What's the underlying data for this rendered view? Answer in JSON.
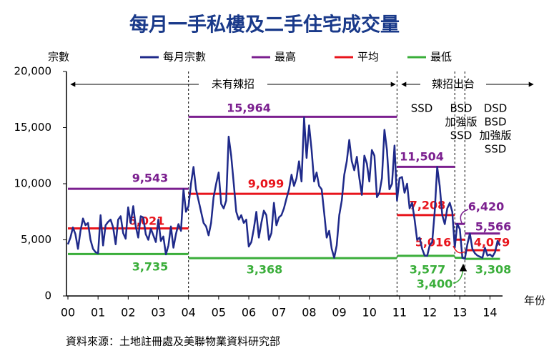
{
  "chart_data": {
    "type": "line",
    "title": "每月一手私樓及二手住宅成交量",
    "ylabel": "宗數",
    "xlabel": "年份",
    "source": "資料來源：土地註冊處及美聯物業資料研究部",
    "xlim": [
      0,
      173
    ],
    "xticks": [
      {
        "value": 0,
        "label": "00"
      },
      {
        "value": 12,
        "label": "01"
      },
      {
        "value": 24,
        "label": "02"
      },
      {
        "value": 36,
        "label": "03"
      },
      {
        "value": 48,
        "label": "04"
      },
      {
        "value": 60,
        "label": "05"
      },
      {
        "value": 72,
        "label": "06"
      },
      {
        "value": 84,
        "label": "07"
      },
      {
        "value": 96,
        "label": "08"
      },
      {
        "value": 108,
        "label": "09"
      },
      {
        "value": 120,
        "label": "10"
      },
      {
        "value": 132,
        "label": "11"
      },
      {
        "value": 144,
        "label": "12"
      },
      {
        "value": 156,
        "label": "13"
      },
      {
        "value": 168,
        "label": "14"
      }
    ],
    "ylim": [
      0,
      20000
    ],
    "yticks": [
      0,
      {
        "value": 5000,
        "label": "5,000"
      },
      {
        "value": 10000,
        "label": "10,000"
      },
      {
        "value": 15000,
        "label": "15,000"
      },
      {
        "value": 20000,
        "label": "20,000"
      }
    ],
    "series": [
      {
        "name": "每月宗數",
        "color": "#1f2a8a",
        "x": [
          0,
          1,
          2,
          3,
          4,
          5,
          6,
          7,
          8,
          9,
          10,
          11,
          12,
          13,
          14,
          15,
          16,
          17,
          18,
          19,
          20,
          21,
          22,
          23,
          24,
          25,
          26,
          27,
          28,
          29,
          30,
          31,
          32,
          33,
          34,
          35,
          36,
          37,
          38,
          39,
          40,
          41,
          42,
          43,
          44,
          45,
          46,
          47,
          48,
          49,
          50,
          51,
          52,
          53,
          54,
          55,
          56,
          57,
          58,
          59,
          60,
          61,
          62,
          63,
          64,
          65,
          66,
          67,
          68,
          69,
          70,
          71,
          72,
          73,
          74,
          75,
          76,
          77,
          78,
          79,
          80,
          81,
          82,
          83,
          84,
          85,
          86,
          87,
          88,
          89,
          90,
          91,
          92,
          93,
          94,
          95,
          96,
          97,
          98,
          99,
          100,
          101,
          102,
          103,
          104,
          105,
          106,
          107,
          108,
          109,
          110,
          111,
          112,
          113,
          114,
          115,
          116,
          117,
          118,
          119,
          120,
          121,
          122,
          123,
          124,
          125,
          126,
          127,
          128,
          129,
          130,
          131,
          132,
          133,
          134,
          135,
          136,
          137,
          138,
          139,
          140,
          141,
          142,
          143,
          144,
          145,
          146,
          147,
          148,
          149,
          150,
          151,
          152,
          153,
          154,
          155,
          156,
          157,
          158,
          159,
          160,
          161,
          162,
          163,
          164,
          165,
          166,
          167,
          168,
          169,
          170,
          171,
          172
        ],
        "values": [
          4600,
          5200,
          6100,
          5500,
          4200,
          5800,
          6900,
          6300,
          6500,
          5000,
          4200,
          3900,
          3800,
          7200,
          4500,
          6300,
          6600,
          6800,
          6100,
          4600,
          6800,
          7100,
          5600,
          5100,
          7900,
          6500,
          8000,
          6200,
          5200,
          7100,
          7000,
          5500,
          5000,
          6000,
          5400,
          4800,
          6800,
          4900,
          5300,
          3700,
          4500,
          6200,
          4300,
          5500,
          6400,
          5800,
          9500,
          7500,
          8000,
          10000,
          11500,
          9500,
          8500,
          7500,
          6500,
          6200,
          5400,
          6500,
          8800,
          10000,
          11000,
          8200,
          7800,
          8500,
          14200,
          12500,
          10000,
          7500,
          6800,
          7200,
          6500,
          6800,
          4400,
          4800,
          6000,
          7500,
          5200,
          6500,
          7600,
          7200,
          5000,
          5600,
          8300,
          6300,
          7000,
          7200,
          7800,
          8700,
          9500,
          10800,
          9800,
          10500,
          12000,
          10200,
          15900,
          12300,
          15200,
          13000,
          10200,
          11000,
          9800,
          9500,
          7400,
          5200,
          5800,
          4200,
          3400,
          4500,
          7200,
          8500,
          10800,
          12000,
          13900,
          12000,
          11200,
          12400,
          10500,
          9000,
          12500,
          11800,
          10200,
          13000,
          12500,
          8800,
          9200,
          10500,
          14800,
          13000,
          9500,
          10000,
          13400,
          8500,
          10500,
          10600,
          9200,
          10000,
          7800,
          8300,
          6800,
          5000,
          5200,
          4200,
          3600,
          3580,
          4500,
          4800,
          7500,
          11500,
          9800,
          7200,
          6400,
          7800,
          8300,
          7500,
          4300,
          6420,
          5950,
          3400,
          3310,
          4600,
          5570,
          4200,
          3800,
          3600,
          3500,
          3400,
          4300,
          3600,
          3700,
          3500,
          3900,
          4900,
          4500
        ]
      }
    ],
    "period_bounds": [
      0,
      48,
      131,
      154,
      158,
      172
    ],
    "levels": [
      {
        "name": "最高",
        "color": "#7b1f8f",
        "values": [
          9543,
          15964,
          11504,
          6420,
          5566
        ],
        "value_labels": [
          "9,543",
          "15,964",
          "11,504",
          "6,420",
          "5,566"
        ]
      },
      {
        "name": "平均",
        "color": "#e8141c",
        "values": [
          6021,
          9099,
          7208,
          5016,
          4079
        ],
        "value_labels": [
          "6,021",
          "9,099",
          "7,208",
          "5,016",
          "4,079"
        ]
      },
      {
        "name": "最低",
        "color": "#3aae3a",
        "values": [
          3735,
          3368,
          3577,
          3400,
          3308
        ],
        "value_labels": [
          "3,735",
          "3,368",
          "3,577",
          "3,400",
          "3,308"
        ]
      }
    ],
    "annotations": {
      "period_before": "未有辣招",
      "period_after": "辣招出台",
      "measures": [
        [
          "SSD"
        ],
        [
          "BSD",
          "加強版",
          "SSD"
        ],
        [
          "DSD",
          "BSD",
          "加強版",
          "SSD"
        ]
      ]
    }
  }
}
